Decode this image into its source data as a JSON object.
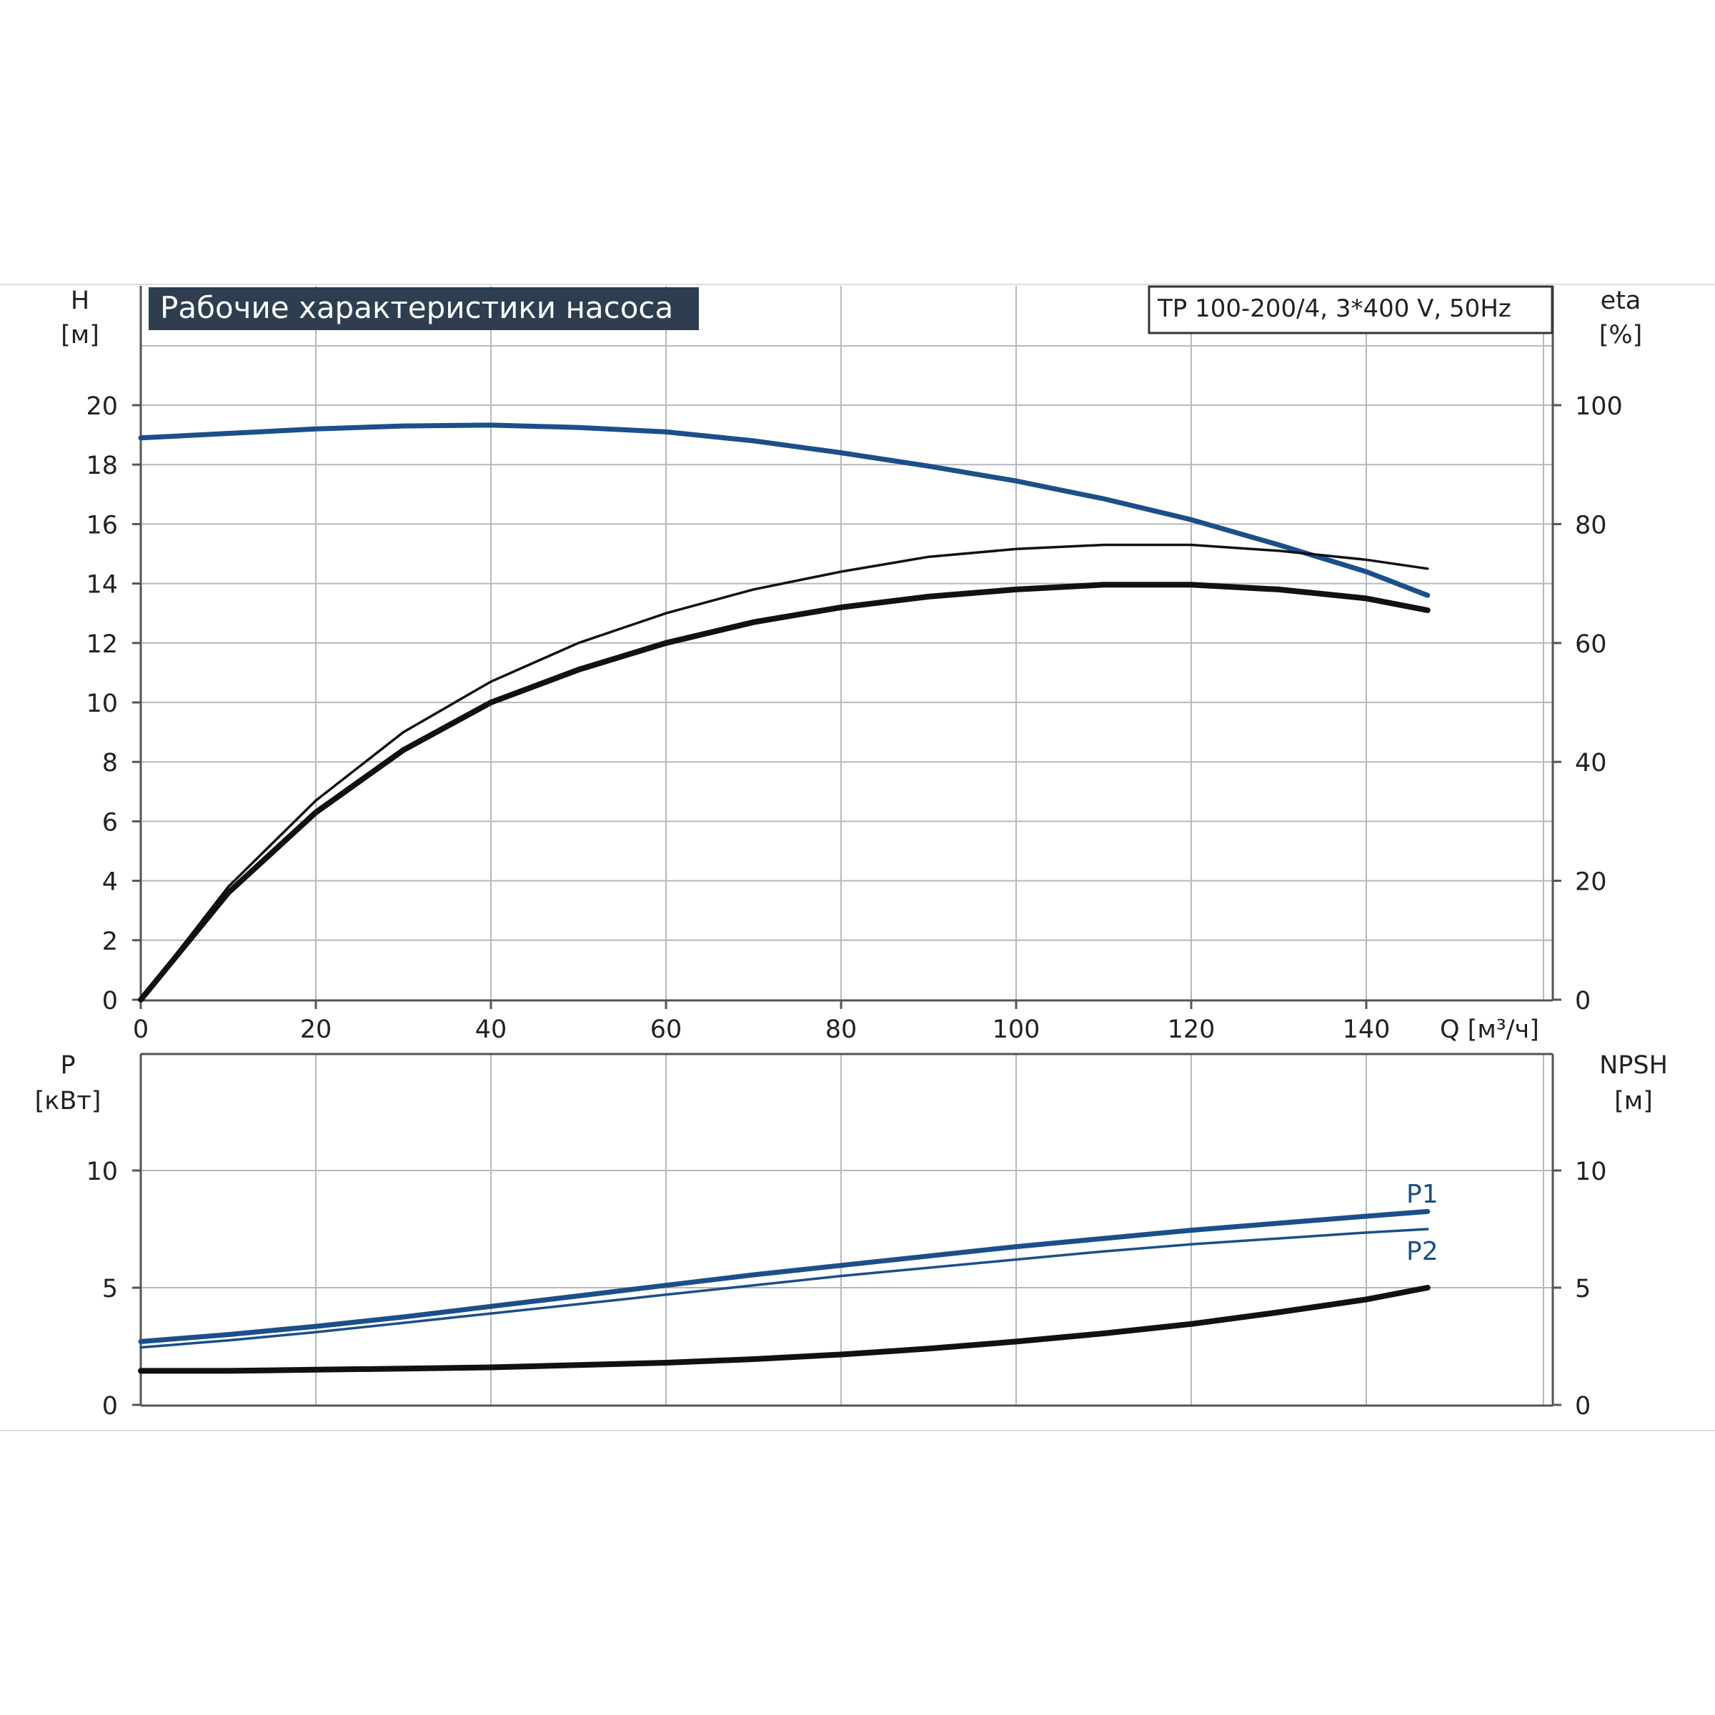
{
  "chart_data": [
    {
      "type": "line",
      "title": "Рабочие характеристики насоса",
      "subtitle": "TP 100-200/4, 3*400 V, 50Hz",
      "xlabel": "Q [м³/ч]",
      "ylabel_left": [
        "H",
        "[м]"
      ],
      "ylabel_right": [
        "eta",
        "[%]"
      ],
      "xlim": [
        0,
        160
      ],
      "ylim_left": [
        0,
        20
      ],
      "ylim_right": [
        0,
        100
      ],
      "x_ticks": [
        "0",
        "20",
        "40",
        "60",
        "80",
        "100",
        "120",
        "140"
      ],
      "y_left_ticks": [
        "0",
        "2",
        "4",
        "6",
        "8",
        "10",
        "12",
        "14",
        "16",
        "18",
        "20"
      ],
      "y_right_ticks": [
        "0",
        "20",
        "40",
        "60",
        "80",
        "100"
      ],
      "grid": true,
      "series": [
        {
          "axis": "left",
          "style": "head",
          "x": [
            0,
            10,
            20,
            30,
            40,
            50,
            60,
            70,
            80,
            90,
            100,
            110,
            120,
            130,
            140,
            147
          ],
          "values": [
            18.9,
            19.05,
            19.2,
            19.3,
            19.33,
            19.25,
            19.1,
            18.8,
            18.4,
            17.95,
            17.45,
            16.85,
            16.15,
            15.3,
            14.4,
            13.6
          ]
        },
        {
          "axis": "right",
          "style": "etas",
          "x": [
            0,
            10,
            20,
            30,
            40,
            50,
            60,
            70,
            80,
            90,
            100,
            110,
            120,
            130,
            140,
            147
          ],
          "values": [
            0,
            19,
            33.5,
            45,
            53.5,
            60,
            65,
            69,
            72,
            74.5,
            75.8,
            76.5,
            76.5,
            75.5,
            74,
            72.5
          ]
        },
        {
          "axis": "right",
          "style": "eta",
          "x": [
            0,
            10,
            20,
            30,
            40,
            50,
            60,
            70,
            80,
            90,
            100,
            110,
            120,
            130,
            140,
            147
          ],
          "values": [
            0,
            18,
            31.5,
            42,
            50,
            55.5,
            60,
            63.5,
            66,
            67.8,
            69,
            69.8,
            69.8,
            69,
            67.5,
            65.5
          ]
        }
      ]
    },
    {
      "type": "line",
      "ylabel_left": [
        "P",
        "[кВт]"
      ],
      "ylabel_right": [
        "NPSH",
        "[м]"
      ],
      "xlim": [
        0,
        160
      ],
      "ylim_left": [
        0,
        15
      ],
      "ylim_right": [
        0,
        15
      ],
      "y_left_ticks": [
        "0",
        "5",
        "10"
      ],
      "y_right_ticks": [
        "0",
        "5",
        "10"
      ],
      "grid": true,
      "series": [
        {
          "name": "P1",
          "axis": "left",
          "style": "p1",
          "x": [
            0,
            10,
            20,
            30,
            40,
            50,
            60,
            70,
            80,
            90,
            100,
            110,
            120,
            130,
            140,
            147
          ],
          "values": [
            2.7,
            3.0,
            3.35,
            3.75,
            4.2,
            4.65,
            5.1,
            5.55,
            5.95,
            6.35,
            6.75,
            7.1,
            7.45,
            7.75,
            8.05,
            8.25
          ]
        },
        {
          "name": "P2",
          "axis": "left",
          "style": "p2",
          "x": [
            0,
            10,
            20,
            30,
            40,
            50,
            60,
            70,
            80,
            90,
            100,
            110,
            120,
            130,
            140,
            147
          ],
          "values": [
            2.45,
            2.75,
            3.1,
            3.5,
            3.9,
            4.3,
            4.7,
            5.1,
            5.5,
            5.85,
            6.2,
            6.55,
            6.85,
            7.1,
            7.35,
            7.5
          ]
        },
        {
          "axis": "right",
          "style": "npsh",
          "x": [
            0,
            10,
            20,
            30,
            40,
            50,
            60,
            70,
            80,
            90,
            100,
            110,
            120,
            130,
            140,
            147
          ],
          "values": [
            1.45,
            1.45,
            1.5,
            1.55,
            1.6,
            1.7,
            1.8,
            1.95,
            2.15,
            2.4,
            2.7,
            3.05,
            3.45,
            3.95,
            4.5,
            5.0
          ]
        }
      ]
    }
  ]
}
